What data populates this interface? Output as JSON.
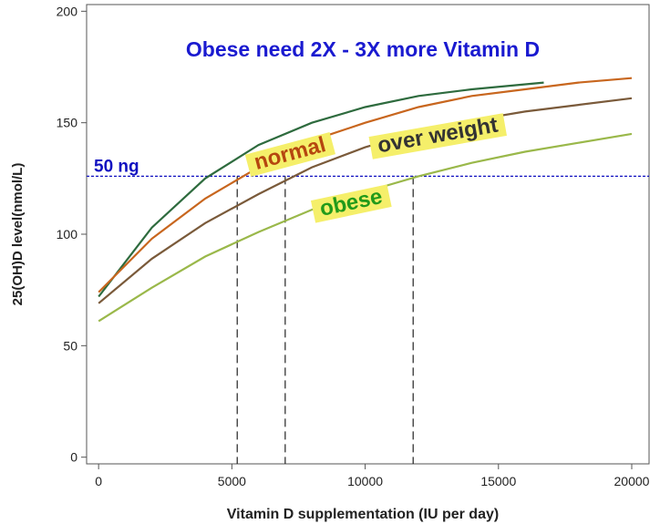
{
  "chart_data": {
    "type": "line",
    "title": "Obese need 2X - 3X more Vitamin D",
    "x_label": "Vitamin D supplementation (IU per day)",
    "y_label": "25(OH)D level(nmol/L)",
    "xlim": [
      -450,
      20650
    ],
    "ylim": [
      -3,
      203
    ],
    "xticks": [
      0,
      5000,
      10000,
      15000,
      20000
    ],
    "yticks": [
      0,
      50,
      100,
      150,
      200
    ],
    "reference_line": {
      "value": 126,
      "label": "50 ng",
      "color": "#1010c0"
    },
    "vlines": [
      5200,
      7000,
      11800
    ],
    "series": [
      {
        "color": "#2e6b3e",
        "x": [
          0,
          2000,
          4000,
          6000,
          8000,
          10000,
          12000,
          14000,
          16700
        ],
        "values": [
          72,
          103,
          125,
          140,
          150,
          157,
          162,
          165,
          168
        ]
      },
      {
        "name": "normal",
        "color": "#c8661e",
        "x": [
          0,
          2000,
          4000,
          6000,
          8000,
          10000,
          12000,
          14000,
          16000,
          18000,
          20000
        ],
        "values": [
          74,
          98,
          116,
          130,
          142,
          150,
          157,
          162,
          165,
          168,
          170
        ]
      },
      {
        "name": "over weight",
        "color": "#7a5a3a",
        "x": [
          0,
          2000,
          4000,
          6000,
          8000,
          10000,
          12000,
          14000,
          16000,
          18000,
          20000
        ],
        "values": [
          69,
          89,
          105,
          118,
          130,
          139,
          146,
          151,
          155,
          158,
          161
        ]
      },
      {
        "name": "obese",
        "color": "#9ab84a",
        "x": [
          0,
          2000,
          4000,
          6000,
          8000,
          10000,
          12000,
          14000,
          16000,
          18000,
          20000
        ],
        "values": [
          61,
          76,
          90,
          101,
          111,
          119,
          126,
          132,
          137,
          141,
          145
        ]
      }
    ]
  }
}
